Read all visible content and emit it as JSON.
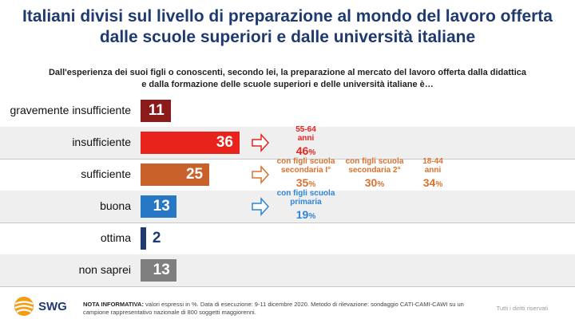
{
  "title_line1": "Italiani divisi sul livello di preparazione al mondo del lavoro offerta",
  "title_line2": "dalle scuole superiori e dalle università italiane",
  "subtitle_line1": "Dall'esperienza dei suoi figli o conoscenti, secondo lei, la preparazione al mercato del lavoro offerta dalla didattica",
  "subtitle_line2": "e dalla formazione delle scuole superiori e delle università italiane è…",
  "chart_data": {
    "type": "bar",
    "orientation": "horizontal",
    "unit": "%",
    "categories": [
      "gravemente insufficiente",
      "insufficiente",
      "sufficiente",
      "buona",
      "ottima",
      "non saprei"
    ],
    "values": [
      11,
      36,
      25,
      13,
      2,
      13
    ],
    "colors": [
      "#8b1a1a",
      "#e8231c",
      "#c8612a",
      "#2778c4",
      "#1f3a6e",
      "#7f7f7f"
    ],
    "xlim": [
      0,
      36
    ]
  },
  "annotations": {
    "insufficiente": [
      {
        "label_line1": "55-64",
        "label_line2": "anni",
        "value": "46",
        "unit": "%",
        "color": "#e8231c"
      }
    ],
    "sufficiente": [
      {
        "label_line1": "con figli scuola",
        "label_line2": "secondaria I°",
        "value": "35",
        "unit": "%",
        "color": "#d9722e"
      },
      {
        "label_line1": "con figli scuola",
        "label_line2": "secondaria 2°",
        "value": "30",
        "unit": "%",
        "color": "#d9722e"
      },
      {
        "label_line1": "18-44",
        "label_line2": "anni",
        "value": "34",
        "unit": "%",
        "color": "#d9722e"
      }
    ],
    "buona": [
      {
        "label_line1": "con figli scuola",
        "label_line2": "primaria",
        "value": "19",
        "unit": "%",
        "color": "#2f86d6"
      }
    ]
  },
  "footer": {
    "note_label": "NOTA INFORMATIVA:",
    "note_text": " valori espressi in %. Data di esecuzione: 9-11 dicembre 2020. Metodo di rilevazione: sondaggio CATI-CAMI-CAWI su un campione rappresentativo nazionale di 800 soggetti maggiorenni.",
    "rights": "Tutti i diritti riservati",
    "logo_text": "SWG"
  }
}
